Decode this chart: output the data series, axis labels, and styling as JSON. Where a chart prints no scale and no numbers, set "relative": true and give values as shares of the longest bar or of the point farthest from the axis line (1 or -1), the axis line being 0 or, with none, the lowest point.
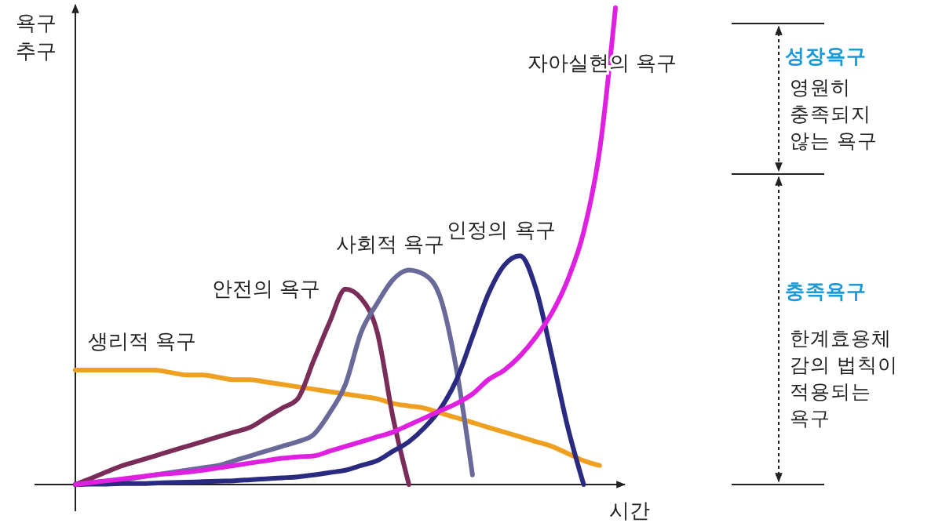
{
  "chart_data": {
    "type": "line",
    "relative": true,
    "xlabel": "시간",
    "ylabel": "욕구\n추구",
    "categories": [
      null,
      null,
      null,
      null,
      null,
      null,
      null,
      null,
      null,
      null,
      null,
      null,
      null,
      null,
      null,
      null,
      null,
      null,
      null,
      null,
      null,
      null,
      null,
      null,
      null,
      null,
      null,
      null,
      null,
      null,
      null,
      null,
      null,
      null,
      null
    ],
    "series": [
      {
        "name": "생리적 욕구",
        "color": "#f0a020",
        "values": [
          0.24,
          0.24,
          0.24,
          0.24,
          0.24,
          0.24,
          0.235,
          0.23,
          0.23,
          0.225,
          0.22,
          0.22,
          0.215,
          0.21,
          0.205,
          0.2,
          0.195,
          0.19,
          0.185,
          0.18,
          0.17,
          0.165,
          0.16,
          0.15,
          0.14,
          0.13,
          0.12,
          0.11,
          0.1,
          0.09,
          0.08,
          0.065,
          0.05,
          0.04,
          null
        ]
      },
      {
        "name": "안전의 욕구",
        "color": "#7b2d5a",
        "values": [
          0,
          0.013,
          0.027,
          0.04,
          0.05,
          0.06,
          0.07,
          0.08,
          0.09,
          0.1,
          0.11,
          0.12,
          0.14,
          0.16,
          0.18,
          0.26,
          0.34,
          0.41,
          0.39,
          0.32,
          0.14,
          0,
          null,
          null,
          null,
          null,
          null,
          null,
          null,
          null,
          null,
          null,
          null,
          null,
          null
        ]
      },
      {
        "name": "사회적 욕구",
        "color": "#6a6a9a",
        "values": [
          0,
          0.003,
          0.007,
          0.01,
          0.015,
          0.02,
          0.025,
          0.03,
          0.035,
          0.04,
          0.05,
          0.06,
          0.07,
          0.08,
          0.09,
          0.105,
          0.15,
          0.21,
          0.32,
          0.38,
          0.43,
          0.45,
          0.44,
          0.39,
          0.24,
          0.02,
          null,
          null,
          null,
          null,
          null,
          null,
          null,
          null,
          null
        ]
      },
      {
        "name": "인정의 욕구",
        "color": "#2a2a80",
        "values": [
          0,
          0.001,
          0.001,
          0.002,
          0.002,
          0.003,
          0.004,
          0.005,
          0.006,
          0.007,
          0.008,
          0.01,
          0.012,
          0.014,
          0.016,
          0.02,
          0.025,
          0.03,
          0.04,
          0.05,
          0.07,
          0.09,
          0.12,
          0.16,
          0.22,
          0.31,
          0.4,
          0.46,
          0.48,
          0.41,
          0.27,
          0.12,
          0,
          null,
          null
        ]
      },
      {
        "name": "자아실현의 욕구",
        "color": "#e020e0",
        "values": [
          0,
          0.004,
          0.008,
          0.012,
          0.016,
          0.02,
          0.023,
          0.026,
          0.03,
          0.035,
          0.04,
          0.045,
          0.05,
          0.055,
          0.058,
          0.06,
          0.07,
          0.08,
          0.09,
          0.1,
          0.11,
          0.125,
          0.14,
          0.155,
          0.17,
          0.19,
          0.22,
          0.24,
          0.27,
          0.31,
          0.36,
          0.43,
          0.53,
          0.7,
          1.0
        ]
      }
    ],
    "annotations": [
      "성장욕구",
      "영원히\n충족되지\n않는 욕구",
      "충족욕구",
      "한계효용체\n감의 법칙이\n적용되는\n욕구"
    ]
  }
}
